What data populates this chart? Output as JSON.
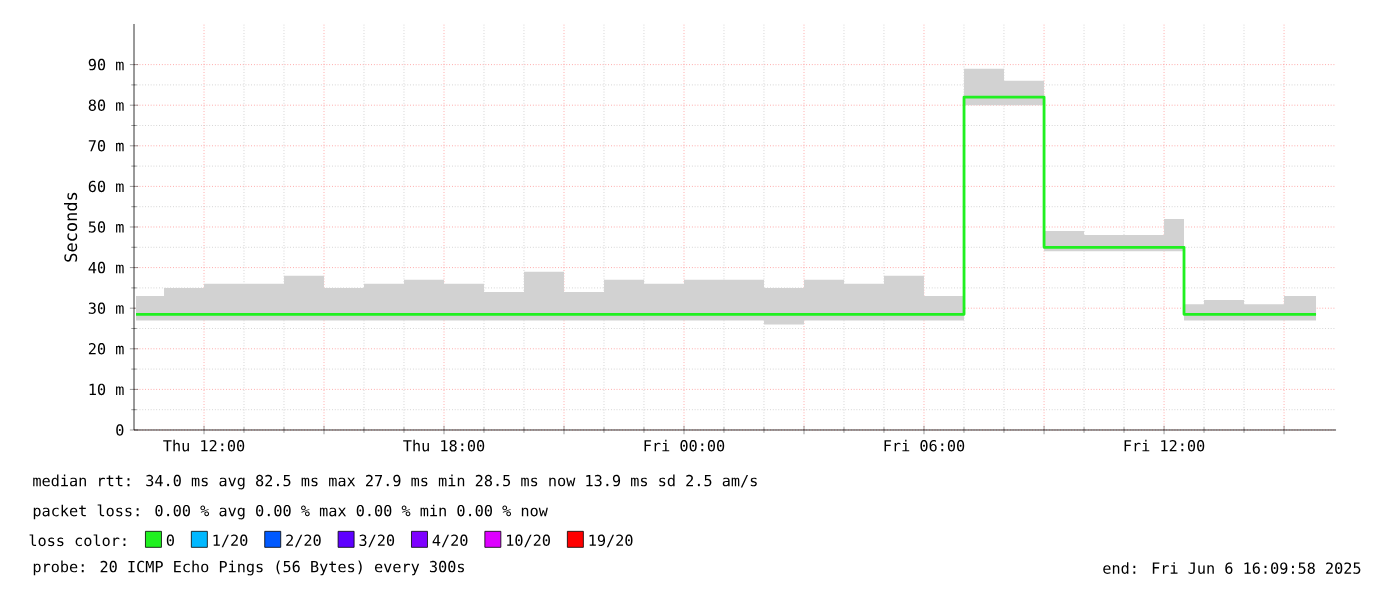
{
  "chart_data": {
    "type": "step",
    "ylabel": "Seconds",
    "x": [
      "2025-06-05T10:18",
      "2025-06-05T11:00",
      "2025-06-05T12:00",
      "2025-06-05T13:00",
      "2025-06-05T14:00",
      "2025-06-05T15:00",
      "2025-06-05T16:00",
      "2025-06-05T17:00",
      "2025-06-05T18:00",
      "2025-06-05T19:00",
      "2025-06-05T20:00",
      "2025-06-05T21:00",
      "2025-06-05T22:00",
      "2025-06-05T23:00",
      "2025-06-06T00:00",
      "2025-06-06T01:00",
      "2025-06-06T02:00",
      "2025-06-06T03:00",
      "2025-06-06T04:00",
      "2025-06-06T05:00",
      "2025-06-06T06:00",
      "2025-06-06T07:00",
      "2025-06-06T08:00",
      "2025-06-06T09:00",
      "2025-06-06T10:00",
      "2025-06-06T11:00",
      "2025-06-06T12:00",
      "2025-06-06T12:30",
      "2025-06-06T13:00",
      "2025-06-06T14:00",
      "2025-06-06T15:00",
      "2025-06-06T15:48"
    ],
    "series": [
      {
        "name": "0",
        "color": "#20f020",
        "values": [
          28.5,
          28.5,
          28.5,
          28.5,
          28.5,
          28.5,
          28.5,
          28.5,
          28.5,
          28.5,
          28.5,
          28.5,
          28.5,
          28.5,
          28.5,
          28.5,
          28.5,
          28.5,
          28.5,
          28.5,
          28.5,
          82,
          82,
          45,
          45,
          45,
          45,
          28.5,
          28.5,
          28.5,
          28.5,
          28.5
        ],
        "upper": [
          33,
          35,
          36,
          36,
          38,
          35,
          36,
          37,
          36,
          34,
          39,
          34,
          37,
          36,
          37,
          37,
          35,
          37,
          36,
          38,
          33,
          89,
          86,
          49,
          48,
          48,
          52,
          31,
          32,
          31,
          33,
          33
        ],
        "lower": [
          27,
          27,
          27,
          27,
          27,
          27,
          27,
          27,
          27,
          27,
          27,
          27,
          27,
          27,
          27,
          27,
          26,
          27,
          27,
          27,
          27,
          80,
          80,
          44,
          44,
          44,
          44,
          27,
          27,
          27,
          27,
          27
        ]
      },
      {
        "name": "1/20",
        "color": "#00b8ff",
        "values": [
          null,
          null,
          null,
          null,
          null,
          null,
          null,
          null,
          null,
          null,
          null,
          null,
          null,
          null,
          null,
          null,
          null,
          null,
          null,
          null,
          null,
          null,
          null,
          null,
          null,
          null,
          null,
          null,
          null,
          null,
          null,
          null
        ]
      },
      {
        "name": "2/20",
        "color": "#0059ff",
        "values": [
          null,
          null,
          null,
          null,
          null,
          null,
          null,
          null,
          null,
          null,
          null,
          null,
          null,
          null,
          null,
          null,
          null,
          null,
          null,
          null,
          null,
          null,
          null,
          null,
          null,
          null,
          null,
          null,
          null,
          null,
          null,
          null
        ]
      },
      {
        "name": "3/20",
        "color": "#5e00ff",
        "values": [
          null,
          null,
          null,
          null,
          null,
          null,
          null,
          null,
          null,
          null,
          null,
          null,
          null,
          null,
          null,
          null,
          null,
          null,
          null,
          null,
          null,
          null,
          null,
          null,
          null,
          null,
          null,
          null,
          null,
          null,
          null,
          null
        ]
      },
      {
        "name": "4/20",
        "color": "#7e00ff",
        "values": [
          null,
          null,
          null,
          null,
          null,
          null,
          null,
          null,
          null,
          null,
          null,
          null,
          null,
          null,
          null,
          null,
          null,
          null,
          null,
          null,
          null,
          null,
          null,
          null,
          null,
          null,
          null,
          null,
          null,
          null,
          null,
          null
        ]
      },
      {
        "name": "10/20",
        "color": "#dd00ff",
        "values": [
          null,
          null,
          null,
          null,
          null,
          null,
          null,
          null,
          null,
          null,
          null,
          null,
          null,
          null,
          null,
          null,
          null,
          null,
          null,
          null,
          null,
          null,
          null,
          null,
          null,
          null,
          null,
          null,
          null,
          null,
          null,
          null
        ]
      },
      {
        "name": "19/20",
        "color": "#ff0000",
        "values": [
          null,
          null,
          null,
          null,
          null,
          null,
          null,
          null,
          null,
          null,
          null,
          null,
          null,
          null,
          null,
          null,
          null,
          null,
          null,
          null,
          null,
          null,
          null,
          null,
          null,
          null,
          null,
          null,
          null,
          null,
          null,
          null
        ]
      }
    ],
    "legend_title": "loss color:",
    "legend": "bottom",
    "xlim": [
      "2025-06-05T10:15",
      "2025-06-06T16:18"
    ],
    "xticks": [
      {
        "value": "2025-06-05T12:00",
        "label": "Thu 12:00"
      },
      {
        "value": "2025-06-05T15:00",
        "label": null
      },
      {
        "value": "2025-06-05T18:00",
        "label": "Thu 18:00"
      },
      {
        "value": "2025-06-05T21:00",
        "label": null
      },
      {
        "value": "2025-06-06T00:00",
        "label": "Fri 00:00"
      },
      {
        "value": "2025-06-06T03:00",
        "label": null
      },
      {
        "value": "2025-06-06T06:00",
        "label": "Fri 06:00"
      },
      {
        "value": "2025-06-06T09:00",
        "label": null
      },
      {
        "value": "2025-06-06T12:00",
        "label": "Fri 12:00"
      },
      {
        "value": "2025-06-06T15:00",
        "label": null
      }
    ],
    "ylim": [
      0,
      100
    ],
    "yticks": [
      {
        "value": 0,
        "label": "0"
      },
      {
        "value": 10,
        "label": "10 m"
      },
      {
        "value": 20,
        "label": "20 m"
      },
      {
        "value": 30,
        "label": "30 m"
      },
      {
        "value": 40,
        "label": "40 m"
      },
      {
        "value": 50,
        "label": "50 m"
      },
      {
        "value": 60,
        "label": "60 m"
      },
      {
        "value": 70,
        "label": "70 m"
      },
      {
        "value": 80,
        "label": "80 m"
      },
      {
        "value": 90,
        "label": "90 m"
      }
    ],
    "grid": true,
    "annotations": [
      "median rtt:  34.0 ms avg  82.5 ms max  27.9 ms min  28.5 ms now  13.9 ms sd  2.5   am/s",
      "packet loss: 0.00 % avg  0.00 % max  0.00 % min  0.00 % now",
      "probe:       20 ICMP Echo Pings (56 Bytes) every 300s",
      "end: Fri Jun  6 16:09:58 2025"
    ]
  }
}
